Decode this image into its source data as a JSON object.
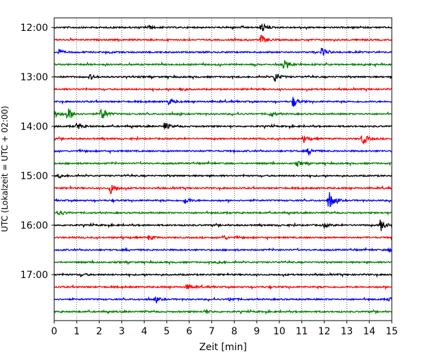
{
  "chart_data": {
    "type": "line",
    "xlabel": "Zeit  [min]",
    "ylabel": "UTC (Lokalzeit = UTC + 02:00)",
    "xlim": [
      0,
      15
    ],
    "x_ticks": [
      "0",
      "1",
      "2",
      "3",
      "4",
      "5",
      "6",
      "7",
      "8",
      "9",
      "10",
      "11",
      "12",
      "13",
      "14",
      "15"
    ],
    "y_ticks": [
      "12:00",
      "13:00",
      "14:00",
      "15:00",
      "16:00",
      "17:00"
    ],
    "grid_x": true,
    "colors_cycle": [
      "#000000",
      "#ff0000",
      "#0000ff",
      "#008000"
    ],
    "series": [
      {
        "label": "12:00",
        "events": [
          [
            4.2,
            0.35
          ],
          [
            9.2,
            0.9
          ]
        ]
      },
      {
        "label": "12:15",
        "events": [
          [
            9.2,
            1.0
          ]
        ]
      },
      {
        "label": "12:30",
        "events": [
          [
            0.2,
            0.5
          ],
          [
            11.9,
            0.8
          ]
        ]
      },
      {
        "label": "12:45",
        "events": [
          [
            10.2,
            0.9
          ]
        ]
      },
      {
        "label": "13:00",
        "events": [
          [
            1.6,
            0.5
          ],
          [
            9.8,
            1.1
          ]
        ]
      },
      {
        "label": "13:15",
        "events": [
          [
            5.6,
            0.4
          ]
        ]
      },
      {
        "label": "13:30",
        "events": [
          [
            5.1,
            0.7
          ],
          [
            10.6,
            1.1
          ]
        ]
      },
      {
        "label": "13:45",
        "events": [
          [
            0.0,
            0.8
          ],
          [
            0.6,
            1.4
          ],
          [
            2.1,
            1.5
          ],
          [
            9.6,
            0.5
          ]
        ]
      },
      {
        "label": "14:00",
        "events": [
          [
            1.0,
            0.7
          ],
          [
            4.9,
            0.8
          ]
        ]
      },
      {
        "label": "14:15",
        "events": [
          [
            11.1,
            0.6
          ],
          [
            13.7,
            1.3
          ]
        ]
      },
      {
        "label": "14:30",
        "events": [
          [
            11.3,
            0.7
          ]
        ]
      },
      {
        "label": "14:45",
        "events": [
          [
            10.8,
            0.5
          ]
        ]
      },
      {
        "label": "15:00",
        "events": [
          [
            0.2,
            0.4
          ]
        ]
      },
      {
        "label": "15:15",
        "events": [
          [
            2.5,
            1.2
          ]
        ]
      },
      {
        "label": "15:30",
        "events": [
          [
            5.8,
            0.7
          ],
          [
            12.2,
            2.0
          ]
        ]
      },
      {
        "label": "15:45",
        "events": [
          [
            0.2,
            0.7
          ]
        ]
      },
      {
        "label": "16:00",
        "events": [
          [
            12.0,
            0.5
          ],
          [
            14.5,
            1.3
          ]
        ]
      },
      {
        "label": "16:15",
        "events": [
          [
            4.2,
            0.5
          ],
          [
            7.5,
            0.5
          ]
        ]
      },
      {
        "label": "16:30",
        "events": [
          [
            14.9,
            0.4
          ]
        ]
      },
      {
        "label": "16:45",
        "events": [
          [
            7.3,
            0.3
          ]
        ]
      },
      {
        "label": "17:00",
        "events": [
          [
            1.2,
            0.3
          ]
        ]
      },
      {
        "label": "17:15",
        "events": [
          [
            5.9,
            0.6
          ]
        ]
      },
      {
        "label": "17:30",
        "events": [
          [
            4.5,
            0.5
          ],
          [
            7.8,
            0.4
          ],
          [
            14.9,
            0.4
          ]
        ]
      },
      {
        "label": "17:45",
        "events": [
          [
            6.7,
            0.4
          ]
        ]
      }
    ]
  }
}
